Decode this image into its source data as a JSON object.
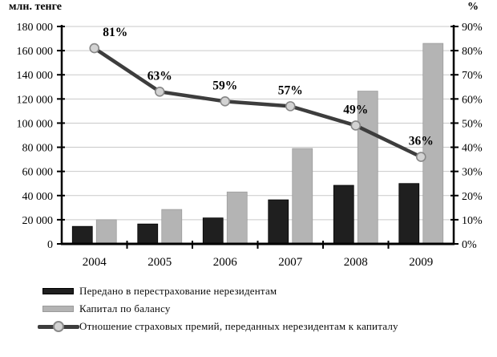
{
  "chart_data": {
    "type": "bar+line combo",
    "title": "",
    "categories": [
      "2004",
      "2005",
      "2006",
      "2007",
      "2008",
      "2009"
    ],
    "series": [
      {
        "name": "Передано в перестрахование нерезидентам",
        "type": "bar",
        "axis": "left",
        "color": "#1f1f1f",
        "values": [
          14500,
          16500,
          21500,
          36500,
          48500,
          50000
        ]
      },
      {
        "name": "Капитал по балансу",
        "type": "bar",
        "axis": "left",
        "color": "#b4b4b4",
        "values": [
          20000,
          28500,
          43000,
          79000,
          126500,
          166000
        ]
      },
      {
        "name": "Отношение страховых премий, переданных нерезидентам к капиталу",
        "type": "line",
        "axis": "right",
        "color": "#3d3d3d",
        "marker_fill": "#d3d3d3",
        "marker_stroke": "#878787",
        "values": [
          81,
          63,
          59,
          57,
          49,
          36
        ],
        "point_labels": [
          "81%",
          "63%",
          "59%",
          "57%",
          "49%",
          "36%"
        ]
      }
    ],
    "left_axis": {
      "label": "млн. тенге",
      "min": 0,
      "max": 180000,
      "step": 20000,
      "tick_labels": [
        "0",
        "20 000",
        "40 000",
        "60 000",
        "80 000",
        "100 000",
        "120 000",
        "140 000",
        "160 000",
        "180 000"
      ]
    },
    "right_axis": {
      "label": "%",
      "min": 0,
      "max": 90,
      "step": 10,
      "tick_labels": [
        "0%",
        "10%",
        "20%",
        "30%",
        "40%",
        "50%",
        "60%",
        "70%",
        "80%",
        "90%"
      ]
    },
    "grid": true,
    "gridline_color": "#c9c9c9",
    "axis_color": "#000000",
    "legend_position": "bottom-left"
  }
}
